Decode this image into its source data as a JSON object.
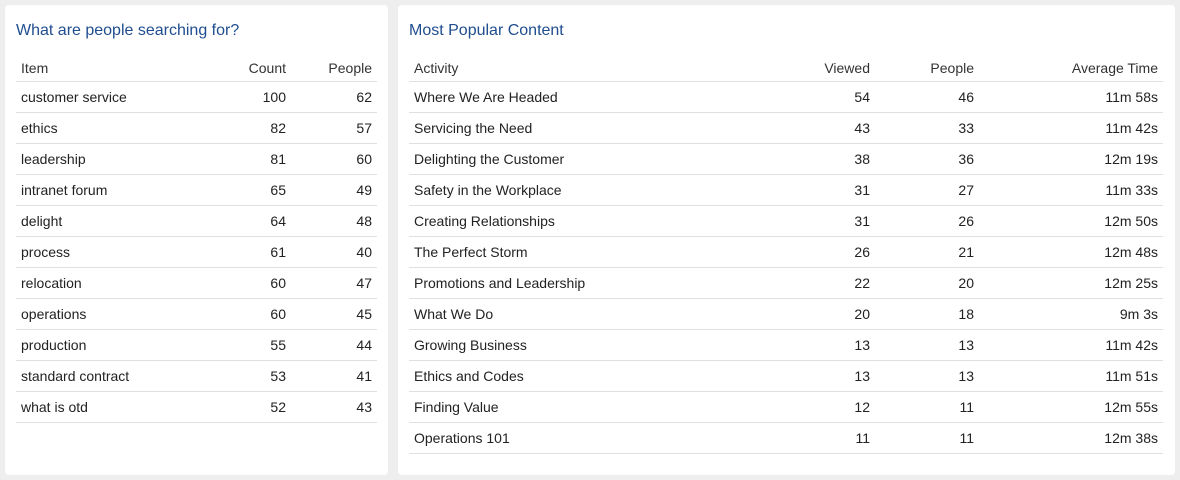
{
  "search_panel": {
    "title": "What are people searching for?",
    "columns": [
      "Item",
      "Count",
      "People"
    ],
    "rows": [
      [
        "customer service",
        "100",
        "62"
      ],
      [
        "ethics",
        "82",
        "57"
      ],
      [
        "leadership",
        "81",
        "60"
      ],
      [
        "intranet forum",
        "65",
        "49"
      ],
      [
        "delight",
        "64",
        "48"
      ],
      [
        "process",
        "61",
        "40"
      ],
      [
        "relocation",
        "60",
        "47"
      ],
      [
        "operations",
        "60",
        "45"
      ],
      [
        "production",
        "55",
        "44"
      ],
      [
        "standard contract",
        "53",
        "41"
      ],
      [
        "what is otd",
        "52",
        "43"
      ]
    ]
  },
  "popular_panel": {
    "title": "Most Popular Content",
    "columns": [
      "Activity",
      "Viewed",
      "People",
      "Average Time"
    ],
    "rows": [
      [
        "Where We Are Headed",
        "54",
        "46",
        "11m 58s"
      ],
      [
        "Servicing the Need",
        "43",
        "33",
        "11m 42s"
      ],
      [
        "Delighting the Customer",
        "38",
        "36",
        "12m 19s"
      ],
      [
        "Safety in the Workplace",
        "31",
        "27",
        "11m 33s"
      ],
      [
        "Creating Relationships",
        "31",
        "26",
        "12m 50s"
      ],
      [
        "The Perfect Storm",
        "26",
        "21",
        "12m 48s"
      ],
      [
        "Promotions and Leadership",
        "22",
        "20",
        "12m 25s"
      ],
      [
        "What We Do",
        "20",
        "18",
        "9m 3s"
      ],
      [
        "Growing Business",
        "13",
        "13",
        "11m 42s"
      ],
      [
        "Ethics and Codes",
        "13",
        "13",
        "11m 51s"
      ],
      [
        "Finding Value",
        "12",
        "11",
        "12m 55s"
      ],
      [
        "Operations 101",
        "11",
        "11",
        "12m 38s"
      ]
    ]
  }
}
